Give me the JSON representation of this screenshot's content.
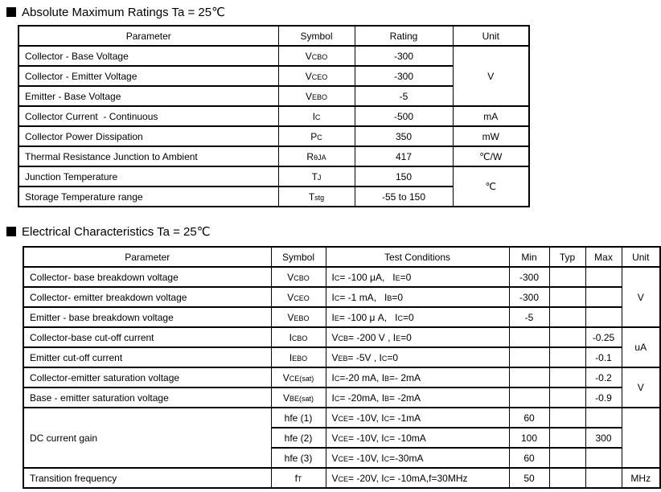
{
  "amr": {
    "title": "Absolute Maximum Ratings Ta = 25℃",
    "headers": [
      "Parameter",
      "Symbol",
      "Rating",
      "Unit"
    ],
    "rows": [
      {
        "param": "Collector - Base Voltage",
        "symbol": "V{CBO}",
        "rating": "-300",
        "unit": "V"
      },
      {
        "param": "Collector - Emitter Voltage",
        "symbol": "V{CEO}",
        "rating": "-300"
      },
      {
        "param": "Emitter - Base Voltage",
        "symbol": "V{EBO}",
        "rating": "-5"
      },
      {
        "param": "Collector Current  - Continuous",
        "symbol": "I{C}",
        "rating": "-500",
        "unit": "mA"
      },
      {
        "param": "Collector Power Dissipation",
        "symbol": "P{C}",
        "rating": "350",
        "unit": "mW"
      },
      {
        "param": "Thermal Resistance Junction to Ambient",
        "symbol": "R{θJA}",
        "rating": "417",
        "unit": "℃/W"
      },
      {
        "param": "Junction Temperature",
        "symbol": "T{J}",
        "rating": "150",
        "unit": "℃"
      },
      {
        "param": "Storage Temperature range",
        "symbol": "T{stg}",
        "rating": "-55 to 150"
      }
    ]
  },
  "ec": {
    "title": "Electrical Characteristics Ta = 25℃",
    "headers": [
      "Parameter",
      "Symbol",
      "Test Conditions",
      "Min",
      "Typ",
      "Max",
      "Unit"
    ],
    "rows": [
      {
        "param": "Collector- base breakdown voltage",
        "symbol": "V{CBO}",
        "cond": "I{C}= -100 μA,   I{E}=0",
        "min": "-300",
        "typ": "",
        "max": "",
        "unit": "V"
      },
      {
        "param": "Collector- emitter breakdown voltage",
        "symbol": "V{CEO}",
        "cond": "I{C}= -1 mA,   I{B}=0",
        "min": "-300",
        "typ": "",
        "max": ""
      },
      {
        "param": "Emitter - base breakdown voltage",
        "symbol": "V{EBO}",
        "cond": "I{E}= -100 μ A,   I{C}=0",
        "min": "-5",
        "typ": "",
        "max": ""
      },
      {
        "param": "Collector-base cut-off current",
        "symbol": "I{CBO}",
        "cond": "V{CB}= -200 V , I{E}=0",
        "min": "",
        "typ": "",
        "max": "-0.25",
        "unit": "uA"
      },
      {
        "param": "Emitter cut-off current",
        "symbol": "I{EBO}",
        "cond": "V{EB}= -5V , I{C}=0",
        "min": "",
        "typ": "",
        "max": "-0.1"
      },
      {
        "param": "Collector-emitter saturation voltage",
        "symbol": "V{CE(sat)}",
        "cond": "I{C}=-20 mA, I{B}=- 2mA",
        "min": "",
        "typ": "",
        "max": "-0.2",
        "unit": "V"
      },
      {
        "param": "Base - emitter saturation voltage",
        "symbol": "V{BE(sat)}",
        "cond": "I{C}= -20mA, I{B}= -2mA",
        "min": "",
        "typ": "",
        "max": "-0.9"
      },
      {
        "param": "DC current gain",
        "symbol": "hfe (1)",
        "cond": "V{CE}= -10V, I{C}= -1mA",
        "min": "60",
        "typ": "",
        "max": "",
        "unit": ""
      },
      {
        "param": "",
        "symbol": "hfe (2)",
        "cond": "V{CE}= -10V, I{C}= -10mA",
        "min": "100",
        "typ": "",
        "max": "300"
      },
      {
        "param": "",
        "symbol": "hfe (3)",
        "cond": "V{CE}= -10V, I{C}=-30mA",
        "min": "60",
        "typ": "",
        "max": ""
      },
      {
        "param": "Transition frequency",
        "symbol": "f{T}",
        "cond": "V{CE}= -20V, I{C}= -10mA,f=30MHz",
        "min": "50",
        "typ": "",
        "max": "",
        "unit": "MHz"
      }
    ]
  }
}
